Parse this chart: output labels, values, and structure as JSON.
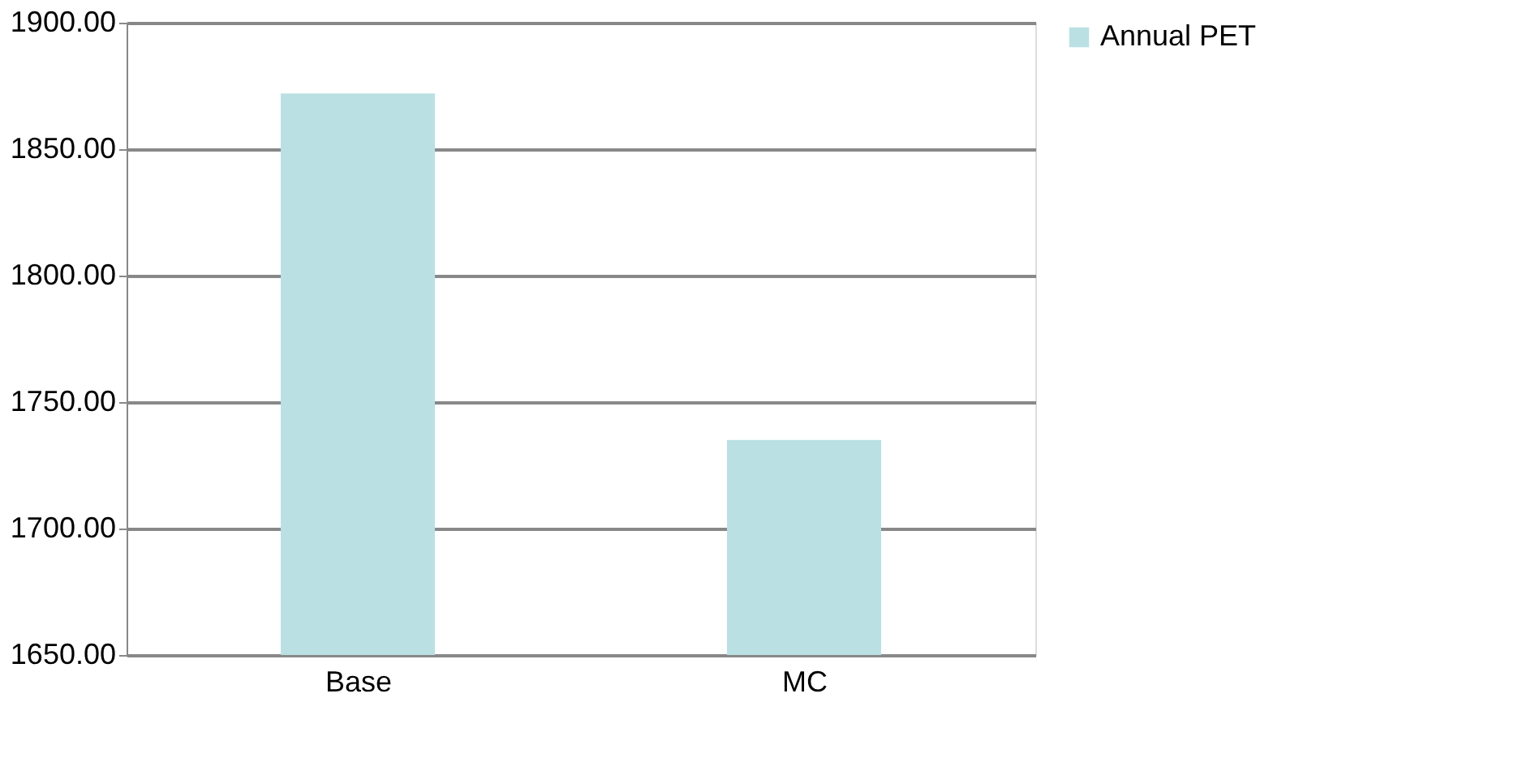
{
  "chart_data": {
    "type": "bar",
    "categories": [
      "Base",
      "MC"
    ],
    "series": [
      {
        "name": "Annual PET",
        "color": "#bbe0e3",
        "values": [
          1872,
          1735
        ]
      }
    ],
    "ylim": [
      1650,
      1900
    ],
    "yticks": [
      {
        "value": 1650,
        "label": "1650.00"
      },
      {
        "value": 1700,
        "label": "1700.00"
      },
      {
        "value": 1750,
        "label": "1750.00"
      },
      {
        "value": 1800,
        "label": "1800.00"
      },
      {
        "value": 1850,
        "label": "1850.00"
      },
      {
        "value": 1900,
        "label": "1900.00"
      }
    ],
    "grid": "y",
    "legend": "right"
  }
}
